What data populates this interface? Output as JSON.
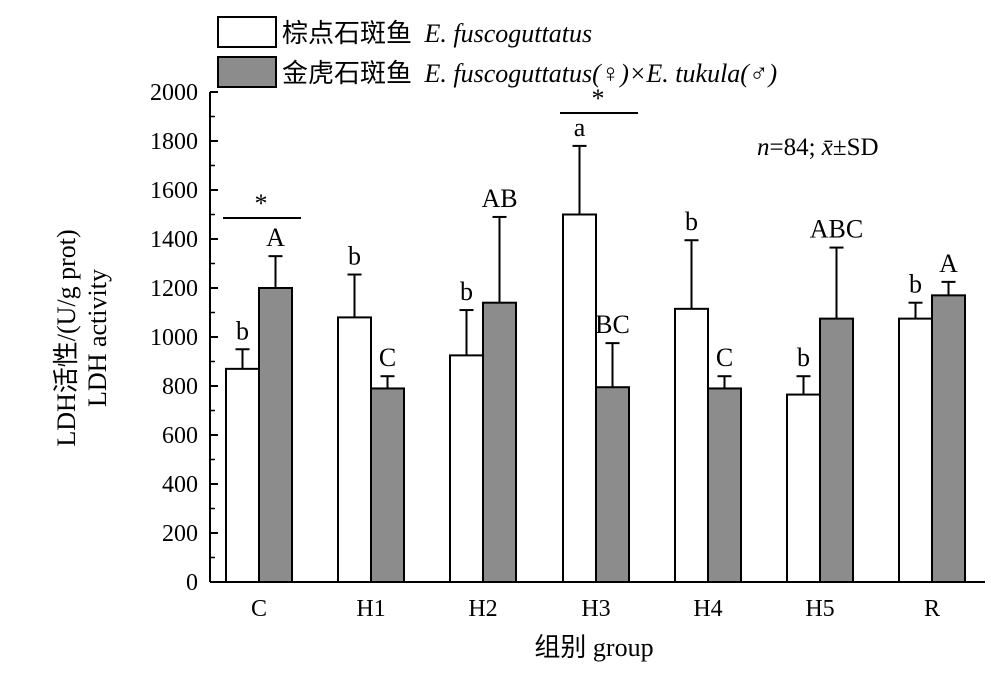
{
  "chart_data": {
    "type": "bar",
    "categories": [
      "C",
      "H1",
      "H2",
      "H3",
      "H4",
      "H5",
      "R"
    ],
    "ylim": [
      0,
      2000
    ],
    "yticks": [
      "0",
      "200",
      "400",
      "600",
      "800",
      "1000",
      "1200",
      "1400",
      "1600",
      "1800",
      "2000"
    ],
    "ylabel": "LDH活性/(U/g prot)",
    "ylabel2": "LDH activity",
    "xlabel": "组别 group",
    "grid": false,
    "legend_position": "top-left",
    "series": [
      {
        "name_cn": "棕点石斑鱼",
        "name_latin": "E. fuscoguttatus",
        "color": "#ffffff",
        "values": [
          870,
          1080,
          925,
          1500,
          1115,
          765,
          1075
        ],
        "errors": [
          80,
          175,
          185,
          280,
          280,
          75,
          65
        ],
        "letters": [
          "b",
          "b",
          "b",
          "a",
          "b",
          "b",
          "b"
        ]
      },
      {
        "name_cn": "金虎石斑鱼",
        "name_latin": "E. fuscoguttatus(♀)×E. tukula(♂)",
        "color": "#8c8c8c",
        "values": [
          1200,
          790,
          1140,
          795,
          790,
          1075,
          1170
        ],
        "errors": [
          130,
          50,
          350,
          180,
          50,
          290,
          55
        ],
        "letters": [
          "A",
          "C",
          "AB",
          "BC",
          "C",
          "ABC",
          "A"
        ]
      }
    ],
    "significance": [
      {
        "category": "C",
        "mark": "*"
      },
      {
        "category": "H3",
        "mark": "*"
      }
    ],
    "annotation": {
      "n_italic": "n",
      "n_rest": "=84; ",
      "x_italic": "x̄",
      "sd": "±SD"
    }
  }
}
